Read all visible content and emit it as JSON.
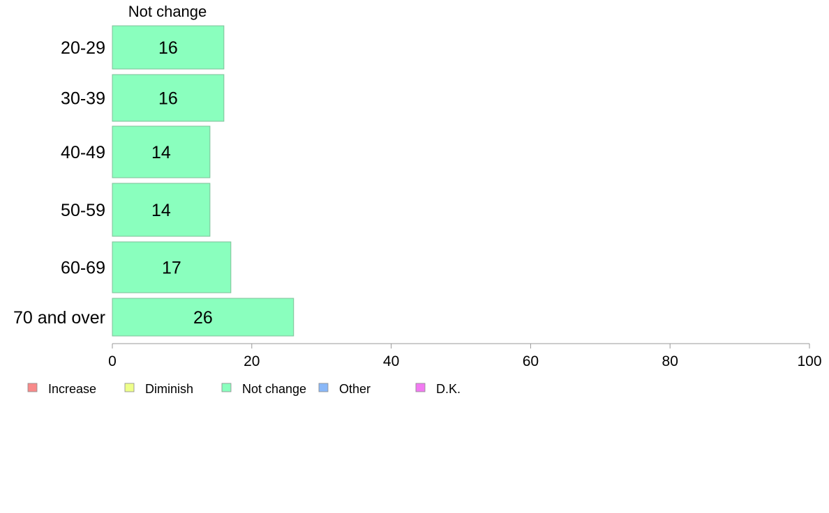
{
  "chart_data": {
    "type": "bar",
    "orientation": "horizontal",
    "stacked": true,
    "series_header": "Not change",
    "categories": [
      "20-29",
      "30-39",
      "40-49",
      "50-59",
      "60-69",
      "70 and over"
    ],
    "series": [
      {
        "name": "Not change",
        "color": "#8affbe",
        "values": [
          16,
          16,
          14,
          14,
          17,
          26
        ]
      }
    ],
    "data_labels": [
      "16",
      "16",
      "14",
      "14",
      "17",
      "26"
    ],
    "xlim": [
      0,
      100
    ],
    "xticks": [
      0,
      20,
      40,
      60,
      80,
      100
    ],
    "xtick_labels": [
      "0",
      "20",
      "40",
      "60",
      "80",
      "100"
    ],
    "grid": false,
    "legend_position": "bottom",
    "legend": [
      {
        "label": "Increase",
        "color": "#f88a8a"
      },
      {
        "label": "Diminish",
        "color": "#eeff8a"
      },
      {
        "label": "Not change",
        "color": "#8affbe"
      },
      {
        "label": "Other",
        "color": "#8ab8f8"
      },
      {
        "label": "D.K.",
        "color": "#f27af2"
      }
    ]
  }
}
